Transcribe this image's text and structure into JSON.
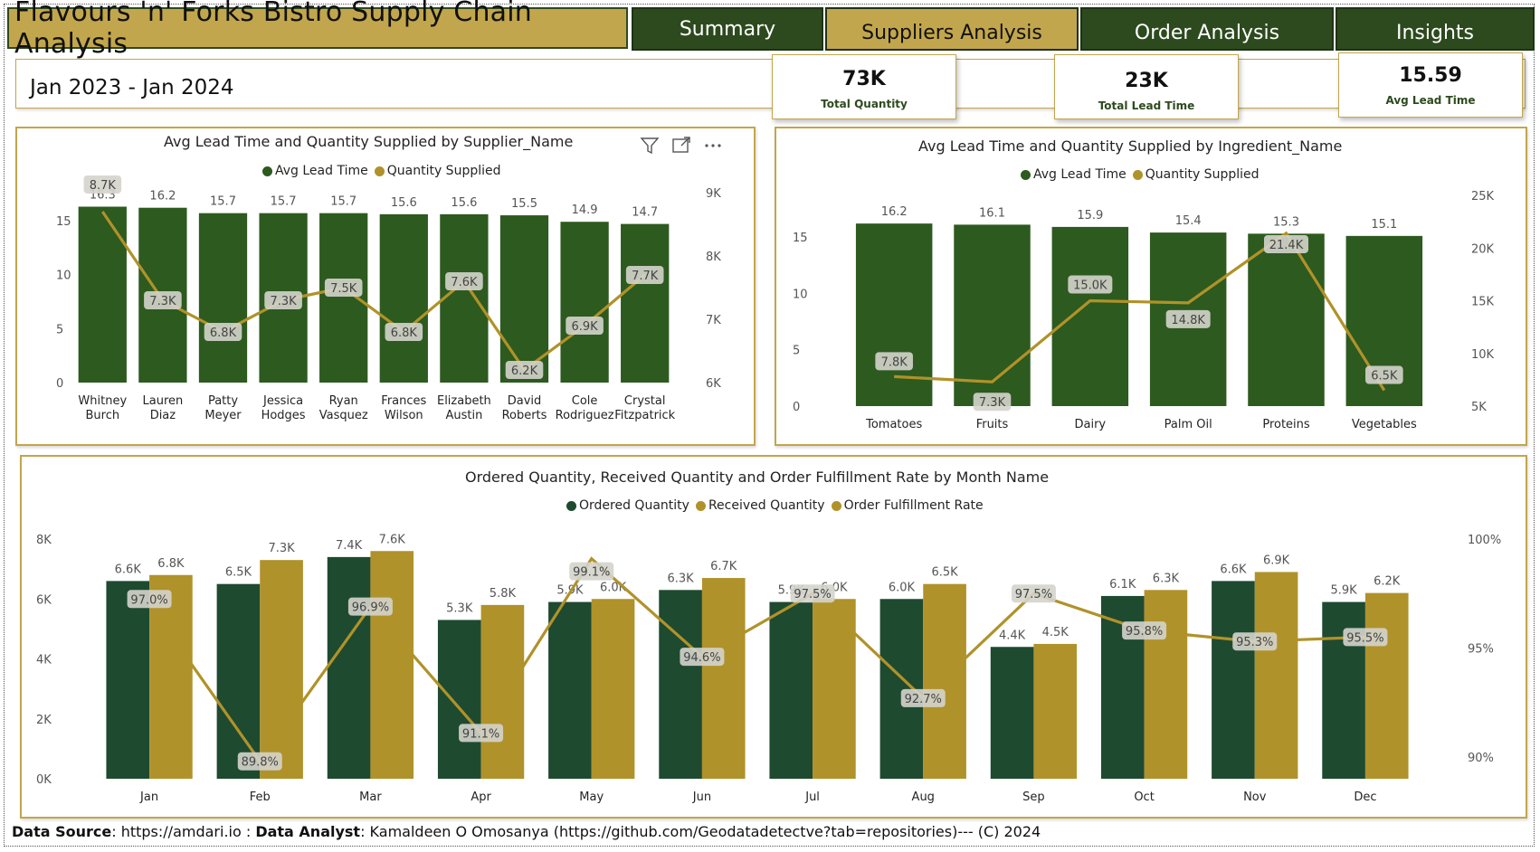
{
  "header": {
    "title": "Flavours 'n' Forks Bistro Supply Chain Analysis",
    "nav": [
      "Summary",
      "Suppliers Analysis",
      "Order Analysis",
      "Insights"
    ]
  },
  "date_range": "Jan 2023 - Jan 2024",
  "kpis": [
    {
      "value": "73K",
      "label": "Total Quantity"
    },
    {
      "value": "23K",
      "label": "Total Lead Time"
    },
    {
      "value": "15.59",
      "label": "Avg Lead Time"
    }
  ],
  "colors": {
    "green": "#2d5a1f",
    "dark_green": "#1e4a30",
    "gold": "#b0922a",
    "title_gold": "#c2a64d"
  },
  "icons": [
    "filter-icon",
    "focus-mode-icon",
    "more-options-icon"
  ],
  "footer": {
    "source_label": "Data Source",
    "source_text": ": https://amdari.io : ",
    "analyst_label": "Data Analyst",
    "analyst_text": ": Kamaldeen O Omosanya (https://github.com/Geodatadetectve?tab=repositories)--- (C) 2024"
  },
  "chart_data": [
    {
      "type": "bar",
      "title": "Avg Lead Time and Quantity Supplied by Supplier_Name",
      "legend": [
        "Avg Lead Time",
        "Quantity Supplied"
      ],
      "categories": [
        [
          "Whitney",
          "Burch"
        ],
        [
          "Lauren",
          "Diaz"
        ],
        [
          "Patty",
          "Meyer"
        ],
        [
          "Jessica",
          "Hodges"
        ],
        [
          "Ryan",
          "Vasquez"
        ],
        [
          "Frances",
          "Wilson"
        ],
        [
          "Elizabeth",
          "Austin"
        ],
        [
          "David",
          "Roberts"
        ],
        [
          "Cole",
          "Rodriguez"
        ],
        [
          "Crystal",
          "Fitzpatrick"
        ]
      ],
      "series": [
        {
          "name": "Avg Lead Time",
          "kind": "bar",
          "values": [
            16.3,
            16.2,
            15.7,
            15.7,
            15.7,
            15.6,
            15.6,
            15.5,
            14.9,
            14.7
          ],
          "labels": [
            "16.3",
            "16.2",
            "15.7",
            "15.7",
            "15.7",
            "15.6",
            "15.6",
            "15.5",
            "14.9",
            "14.7"
          ]
        },
        {
          "name": "Quantity Supplied",
          "kind": "line",
          "values": [
            8700,
            7300,
            6800,
            7300,
            7500,
            6800,
            7600,
            6200,
            6900,
            7700
          ],
          "labels": [
            "8.7K",
            "7.3K",
            "6.8K",
            "7.3K",
            "7.5K",
            "6.8K",
            "7.6K",
            "6.2K",
            "6.9K",
            "7.7K"
          ]
        }
      ],
      "y_left": {
        "range": [
          0,
          17.6
        ],
        "ticks": [
          0,
          5,
          10,
          15
        ],
        "tick_labels": [
          "0",
          "5",
          "10",
          "15"
        ]
      },
      "y_right": {
        "range": [
          6000,
          9000
        ],
        "ticks": [
          6000,
          7000,
          8000,
          9000
        ],
        "tick_labels": [
          "6K",
          "7K",
          "8K",
          "9K"
        ]
      }
    },
    {
      "type": "bar",
      "title": "Avg Lead Time and Quantity Supplied by Ingredient_Name",
      "legend": [
        "Avg Lead Time",
        "Quantity Supplied"
      ],
      "categories": [
        [
          "Tomatoes"
        ],
        [
          "Fruits"
        ],
        [
          "Dairy"
        ],
        [
          "Palm Oil"
        ],
        [
          "Proteins"
        ],
        [
          "Vegetables"
        ]
      ],
      "series": [
        {
          "name": "Avg Lead Time",
          "kind": "bar",
          "values": [
            16.2,
            16.1,
            15.9,
            15.4,
            15.3,
            15.1
          ],
          "labels": [
            "16.2",
            "16.1",
            "15.9",
            "15.4",
            "15.3",
            "15.1"
          ]
        },
        {
          "name": "Quantity Supplied",
          "kind": "line",
          "values": [
            7800,
            7300,
            15000,
            14800,
            21400,
            6500
          ],
          "labels": [
            "7.8K",
            "7.3K",
            "15.0K",
            "14.8K",
            "21.4K",
            "6.5K"
          ]
        }
      ],
      "y_left": {
        "range": [
          0,
          18.7
        ],
        "ticks": [
          0,
          5,
          10,
          15
        ],
        "tick_labels": [
          "0",
          "5",
          "10",
          "15"
        ]
      },
      "y_right": {
        "range": [
          5000,
          25000
        ],
        "ticks": [
          5000,
          10000,
          15000,
          20000,
          25000
        ],
        "tick_labels": [
          "5K",
          "10K",
          "15K",
          "20K",
          "25K"
        ]
      }
    },
    {
      "type": "bar",
      "title": "Ordered Quantity, Received Quantity and Order Fulfillment Rate by Month Name",
      "legend": [
        "Ordered Quantity",
        "Received Quantity",
        "Order Fulfillment Rate"
      ],
      "categories": [
        [
          "Jan"
        ],
        [
          "Feb"
        ],
        [
          "Mar"
        ],
        [
          "Apr"
        ],
        [
          "May"
        ],
        [
          "Jun"
        ],
        [
          "Jul"
        ],
        [
          "Aug"
        ],
        [
          "Sep"
        ],
        [
          "Oct"
        ],
        [
          "Nov"
        ],
        [
          "Dec"
        ]
      ],
      "series": [
        {
          "name": "Ordered Quantity",
          "kind": "bar",
          "values": [
            6600,
            6500,
            7400,
            5300,
            5900,
            6300,
            5900,
            6000,
            4400,
            6100,
            6600,
            5900
          ],
          "labels": [
            "6.6K",
            "6.5K",
            "7.4K",
            "5.3K",
            "5.9K",
            "6.3K",
            "5.9K",
            "6.0K",
            "4.4K",
            "6.1K",
            "6.6K",
            "5.9K"
          ]
        },
        {
          "name": "Received Quantity",
          "kind": "bar",
          "values": [
            6800,
            7300,
            7600,
            5800,
            6000,
            6700,
            6000,
            6500,
            4500,
            6300,
            6900,
            6200
          ],
          "labels": [
            "6.8K",
            "7.3K",
            "7.6K",
            "5.8K",
            "6.0K",
            "6.7K",
            "6.0K",
            "6.5K",
            "4.5K",
            "6.3K",
            "6.9K",
            "6.2K"
          ]
        },
        {
          "name": "Order Fulfillment Rate",
          "kind": "line",
          "values": [
            97.0,
            89.8,
            96.9,
            91.1,
            99.1,
            94.6,
            97.5,
            92.7,
            97.5,
            95.8,
            95.3,
            95.5
          ],
          "labels": [
            "97.0%",
            "89.8%",
            "96.9%",
            "91.1%",
            "99.1%",
            "94.6%",
            "97.5%",
            "92.7%",
            "97.5%",
            "95.8%",
            "95.3%",
            "95.5%"
          ]
        }
      ],
      "y_left": {
        "range": [
          0,
          8000
        ],
        "ticks": [
          0,
          2000,
          4000,
          6000,
          8000
        ],
        "tick_labels": [
          "0K",
          "2K",
          "4K",
          "6K",
          "8K"
        ]
      },
      "y_right": {
        "range": [
          89,
          100
        ],
        "ticks": [
          90,
          95,
          100
        ],
        "tick_labels": [
          "90%",
          "95%",
          "100%"
        ]
      }
    }
  ]
}
